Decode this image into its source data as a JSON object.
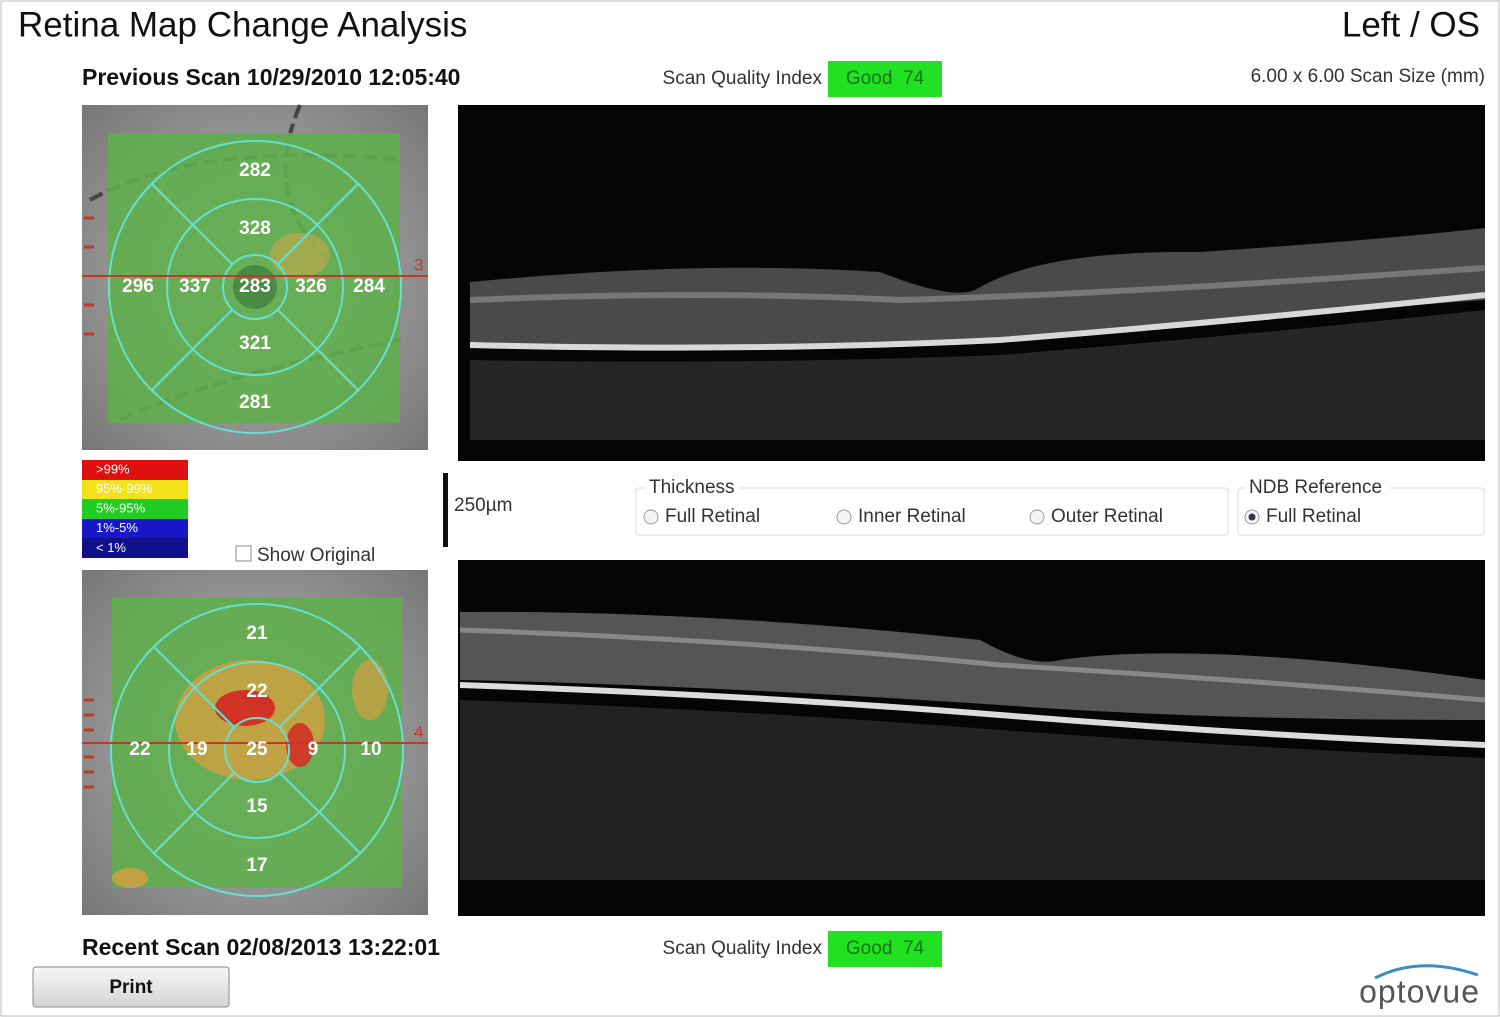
{
  "header": {
    "title": "Retina Map Change Analysis",
    "eye": "Left / OS"
  },
  "previous_scan": {
    "label": "Previous Scan 10/29/2010 12:05:40",
    "quality_label": "Scan Quality Index",
    "quality": "Good  74",
    "scan_size": "6.00 x 6.00 Scan Size (mm)",
    "map_values": [
      "282",
      "328",
      "296",
      "337",
      "283",
      "326",
      "284",
      "321",
      "281"
    ],
    "line_number": "3"
  },
  "legend": [
    ">99%",
    "95%-99%",
    "5%-95%",
    "1%-5%",
    "< 1%"
  ],
  "show_original": "Show Original",
  "scale_bar": "250µm",
  "thickness": {
    "title": "Thickness",
    "options": [
      "Full Retinal",
      "Inner Retinal",
      "Outer Retinal"
    ]
  },
  "ndb": {
    "title": "NDB Reference",
    "options": [
      "Full Retinal"
    ]
  },
  "recent_scan": {
    "label": "Recent Scan 02/08/2013 13:22:01",
    "quality_label": "Scan Quality Index",
    "quality": "Good  74",
    "map_values": [
      "21",
      "22",
      "22",
      "19",
      "25",
      "9",
      "10",
      "15",
      "17"
    ],
    "line_number": "4"
  },
  "print": "Print",
  "logo": "optovue"
}
